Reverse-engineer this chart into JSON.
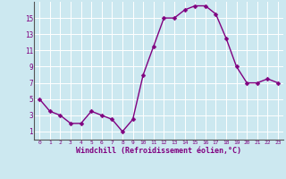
{
  "x": [
    0,
    1,
    2,
    3,
    4,
    5,
    6,
    7,
    8,
    9,
    10,
    11,
    12,
    13,
    14,
    15,
    16,
    17,
    18,
    19,
    20,
    21,
    22,
    23
  ],
  "y": [
    5,
    3.5,
    3,
    2,
    2,
    3.5,
    3,
    2.5,
    1,
    2.5,
    8,
    11.5,
    15,
    15,
    16,
    16.5,
    16.5,
    15.5,
    12.5,
    9,
    7,
    7,
    7.5,
    7
  ],
  "line_color": "#800080",
  "marker_color": "#800080",
  "bg_color": "#cce8f0",
  "grid_color": "#b0d8e8",
  "xlabel": "Windchill (Refroidissement éolien,°C)",
  "xlabel_color": "#800080",
  "tick_color": "#800080",
  "ylim": [
    0,
    17
  ],
  "xlim": [
    -0.5,
    23.5
  ],
  "yticks": [
    1,
    3,
    5,
    7,
    9,
    11,
    13,
    15
  ],
  "xticks": [
    0,
    1,
    2,
    3,
    4,
    5,
    6,
    7,
    8,
    9,
    10,
    11,
    12,
    13,
    14,
    15,
    16,
    17,
    18,
    19,
    20,
    21,
    22,
    23
  ],
  "marker_size": 2.5,
  "line_width": 1.0
}
